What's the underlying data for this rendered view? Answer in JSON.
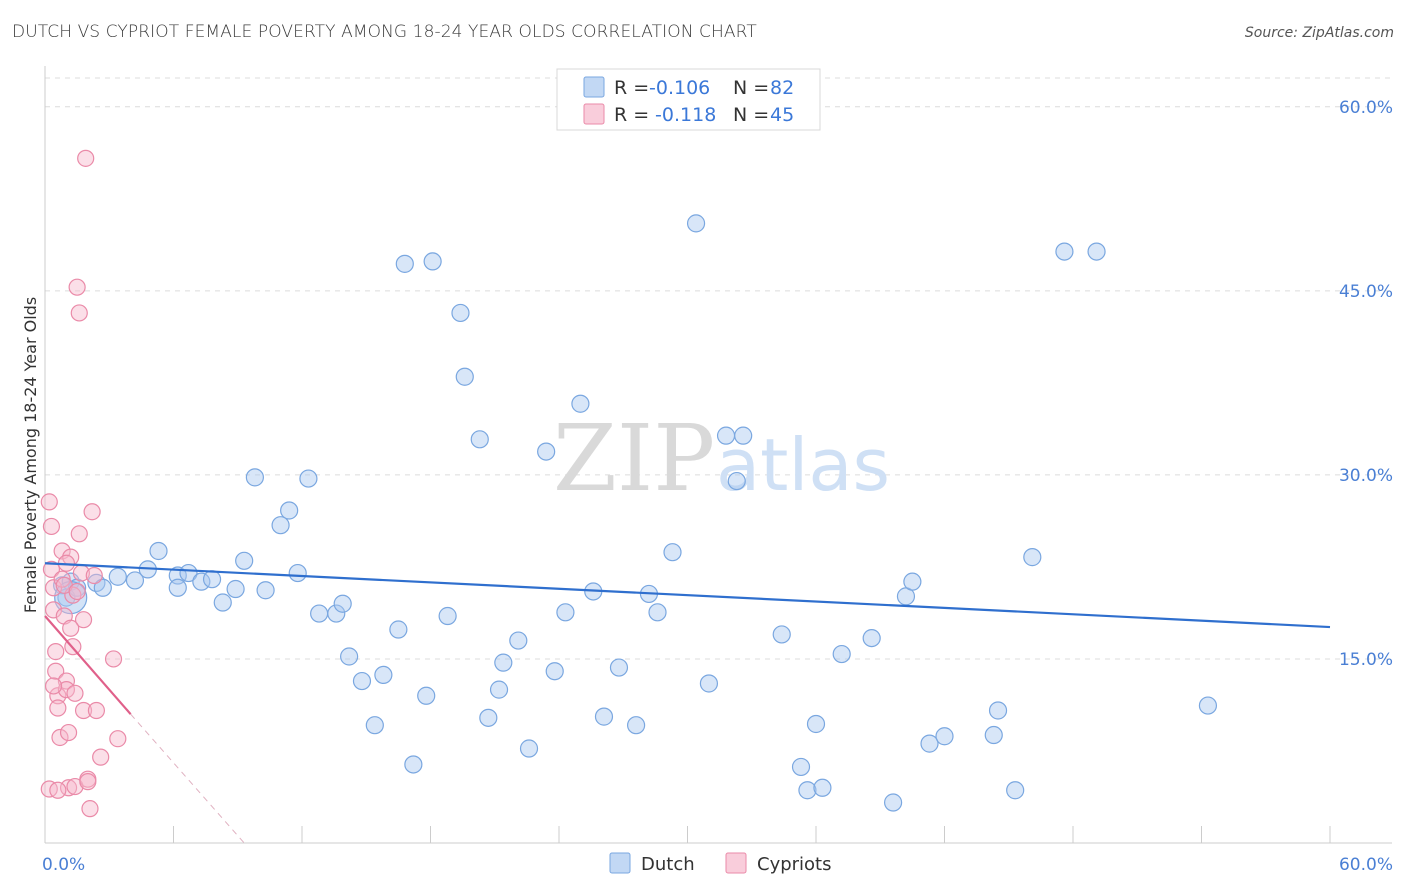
{
  "title": "DUTCH VS CYPRIOT FEMALE POVERTY AMONG 18-24 YEAR OLDS CORRELATION CHART",
  "source": "Source: ZipAtlas.com",
  "watermark": {
    "zip": "ZIP",
    "atlas": "atlas"
  },
  "colors": {
    "dutch_fill": "#a8c8f0",
    "dutch_stroke": "#7aa7e0",
    "dutch_line": "#2f6fce",
    "cypriot_fill": "#f6b8cc",
    "cypriot_stroke": "#ea8aa8",
    "cypriot_line": "#e0608a",
    "tick_label": "#4a7fd4",
    "grid": "#dcdcdc"
  },
  "legend": {
    "rows": [
      {
        "r_label": "R = ",
        "r_value": "-0.106",
        "n_label": "N = ",
        "n_value": "82"
      },
      {
        "r_label": "R = ",
        "r_value": " -0.118",
        "n_label": "N = ",
        "n_value": "45"
      }
    ]
  },
  "bottom_legend": [
    "Dutch",
    "Cypriots"
  ],
  "chart_data": {
    "type": "scatter",
    "ylabel": "Female Poverty Among 18-24 Year Olds",
    "xlim": [
      0,
      60
    ],
    "ylim": [
      0,
      63
    ],
    "x_tick_labels": {
      "left": "0.0%",
      "right": "60.0%"
    },
    "y_ticks": [
      {
        "value": 15,
        "label": "15.0%"
      },
      {
        "value": 30,
        "label": "30.0%"
      },
      {
        "value": 45,
        "label": "45.0%"
      },
      {
        "value": 60,
        "label": "60.0%"
      }
    ],
    "series": [
      {
        "name": "Dutch",
        "r": -0.106,
        "n": 82,
        "trend": {
          "x": [
            0,
            60
          ],
          "y": [
            22.8,
            17.6
          ]
        },
        "points": [
          [
            0.8,
            21.0
          ],
          [
            1.0,
            20.0
          ],
          [
            1.2,
            21.3
          ],
          [
            1.5,
            20.8
          ],
          [
            2.4,
            21.2
          ],
          [
            2.7,
            20.8
          ],
          [
            3.4,
            21.7
          ],
          [
            4.2,
            21.4
          ],
          [
            4.8,
            22.3
          ],
          [
            5.3,
            23.8
          ],
          [
            6.2,
            21.8
          ],
          [
            6.2,
            20.8
          ],
          [
            6.7,
            22.0
          ],
          [
            7.3,
            21.3
          ],
          [
            7.8,
            21.5
          ],
          [
            8.3,
            19.6
          ],
          [
            8.9,
            20.7
          ],
          [
            9.3,
            23.0
          ],
          [
            9.8,
            29.8
          ],
          [
            10.3,
            20.6
          ],
          [
            11.0,
            25.9
          ],
          [
            11.4,
            27.1
          ],
          [
            11.8,
            22.0
          ],
          [
            12.3,
            29.7
          ],
          [
            12.8,
            18.7
          ],
          [
            13.6,
            18.7
          ],
          [
            13.9,
            19.5
          ],
          [
            14.2,
            15.2
          ],
          [
            14.8,
            13.2
          ],
          [
            15.4,
            9.6
          ],
          [
            15.8,
            13.7
          ],
          [
            16.5,
            17.4
          ],
          [
            16.8,
            47.2
          ],
          [
            17.2,
            6.4
          ],
          [
            17.8,
            12.0
          ],
          [
            18.1,
            47.4
          ],
          [
            18.8,
            18.5
          ],
          [
            19.4,
            43.2
          ],
          [
            19.6,
            38.0
          ],
          [
            20.3,
            32.9
          ],
          [
            20.7,
            10.2
          ],
          [
            21.2,
            12.5
          ],
          [
            21.4,
            14.7
          ],
          [
            22.1,
            16.5
          ],
          [
            22.6,
            7.7
          ],
          [
            23.4,
            31.9
          ],
          [
            23.8,
            14.0
          ],
          [
            24.3,
            18.8
          ],
          [
            25.0,
            35.8
          ],
          [
            25.6,
            20.5
          ],
          [
            26.1,
            10.3
          ],
          [
            26.8,
            14.3
          ],
          [
            27.6,
            9.6
          ],
          [
            28.2,
            20.3
          ],
          [
            28.6,
            18.8
          ],
          [
            29.3,
            23.7
          ],
          [
            30.4,
            50.5
          ],
          [
            31.0,
            13.0
          ],
          [
            31.8,
            33.2
          ],
          [
            32.3,
            29.5
          ],
          [
            32.6,
            33.2
          ],
          [
            34.4,
            17.0
          ],
          [
            35.3,
            6.2
          ],
          [
            35.6,
            4.3
          ],
          [
            36.0,
            9.7
          ],
          [
            36.3,
            4.5
          ],
          [
            37.2,
            15.4
          ],
          [
            38.6,
            16.7
          ],
          [
            39.6,
            3.3
          ],
          [
            40.2,
            20.1
          ],
          [
            40.5,
            21.3
          ],
          [
            41.3,
            8.1
          ],
          [
            42.0,
            8.7
          ],
          [
            44.3,
            8.8
          ],
          [
            44.5,
            10.8
          ],
          [
            45.3,
            4.3
          ],
          [
            46.1,
            23.3
          ],
          [
            47.6,
            48.2
          ],
          [
            49.1,
            48.2
          ],
          [
            54.3,
            11.2
          ]
        ]
      },
      {
        "name": "Cypriots",
        "r": -0.118,
        "n": 45,
        "trend": {
          "x": [
            0,
            4
          ],
          "y": [
            18.5,
            10.5
          ]
        },
        "trend_ext": {
          "x": [
            4,
            9.3
          ],
          "y": [
            10.5,
            0
          ]
        },
        "points": [
          [
            0.2,
            27.8
          ],
          [
            0.3,
            25.8
          ],
          [
            0.3,
            22.3
          ],
          [
            0.4,
            20.8
          ],
          [
            0.4,
            19.0
          ],
          [
            0.5,
            15.6
          ],
          [
            0.5,
            14.0
          ],
          [
            0.6,
            12.0
          ],
          [
            0.6,
            11.0
          ],
          [
            0.7,
            8.6
          ],
          [
            0.8,
            23.8
          ],
          [
            0.8,
            21.5
          ],
          [
            0.9,
            18.5
          ],
          [
            1.0,
            13.2
          ],
          [
            1.0,
            12.5
          ],
          [
            1.1,
            9.0
          ],
          [
            1.1,
            4.5
          ],
          [
            1.2,
            23.3
          ],
          [
            1.3,
            20.2
          ],
          [
            1.3,
            16.0
          ],
          [
            1.4,
            12.2
          ],
          [
            1.4,
            4.6
          ],
          [
            1.5,
            45.3
          ],
          [
            1.6,
            43.2
          ],
          [
            1.6,
            25.2
          ],
          [
            1.7,
            22.0
          ],
          [
            1.8,
            18.2
          ],
          [
            1.8,
            10.8
          ],
          [
            1.9,
            55.8
          ],
          [
            2.0,
            5.2
          ],
          [
            2.1,
            2.8
          ],
          [
            2.2,
            27.0
          ],
          [
            2.3,
            21.8
          ],
          [
            2.4,
            10.8
          ],
          [
            2.6,
            7.0
          ],
          [
            3.2,
            15.0
          ],
          [
            3.4,
            8.5
          ],
          [
            0.2,
            4.4
          ],
          [
            0.4,
            12.8
          ],
          [
            0.9,
            21.0
          ],
          [
            1.2,
            17.5
          ],
          [
            1.5,
            20.5
          ],
          [
            2.0,
            5.0
          ],
          [
            0.6,
            4.3
          ],
          [
            1.0,
            22.8
          ]
        ]
      }
    ],
    "bubble_points": [
      {
        "series": "Dutch",
        "x": 1.2,
        "y": 20.0,
        "size": "large"
      }
    ]
  }
}
